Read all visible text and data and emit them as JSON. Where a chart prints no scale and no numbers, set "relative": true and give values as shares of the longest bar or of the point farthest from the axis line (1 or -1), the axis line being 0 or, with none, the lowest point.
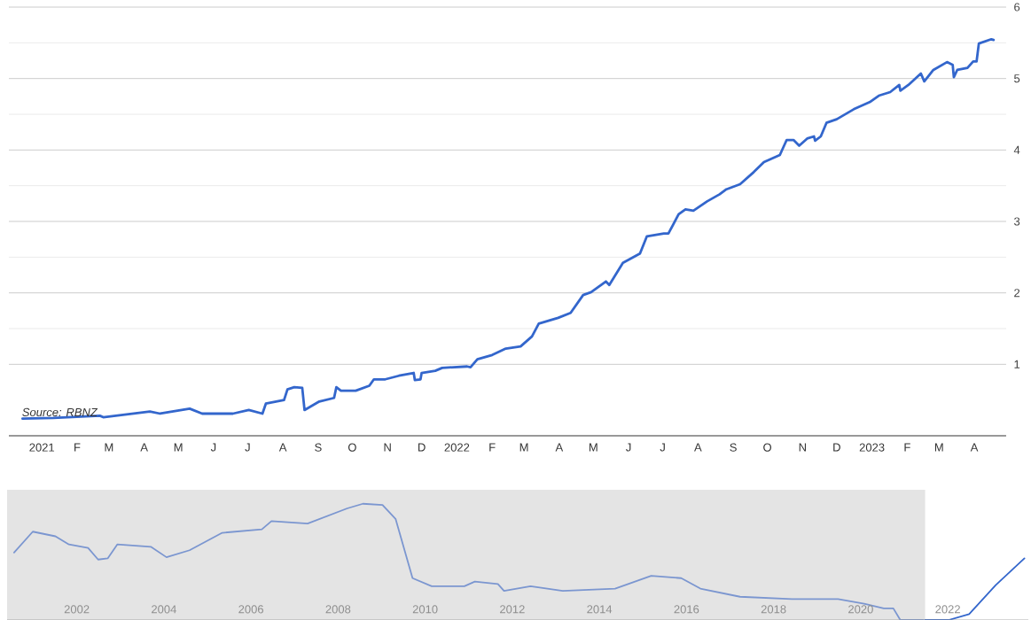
{
  "chart_data": [
    {
      "type": "line",
      "color": "#3366cc",
      "x": [
        "2020-12-15",
        "2021-01-11",
        "2021-02-21",
        "2021-02-24",
        "2021-04-06",
        "2021-04-15",
        "2021-05-11",
        "2021-05-22",
        "2021-06-18",
        "2021-07-02",
        "2021-07-14",
        "2021-07-17",
        "2021-08-02",
        "2021-08-05",
        "2021-08-11",
        "2021-08-18",
        "2021-08-20",
        "2021-09-02",
        "2021-09-15",
        "2021-09-17",
        "2021-09-21",
        "2021-10-04",
        "2021-10-16",
        "2021-10-20",
        "2021-10-30",
        "2021-11-11",
        "2021-11-24",
        "2021-11-25",
        "2021-11-30",
        "2021-12-01",
        "2021-12-13",
        "2021-12-19",
        "2022-01-10",
        "2022-01-13",
        "2022-01-19",
        "2022-02-01",
        "2022-02-13",
        "2022-02-26",
        "2022-03-08",
        "2022-03-14",
        "2022-03-31",
        "2022-04-11",
        "2022-04-22",
        "2022-04-29",
        "2022-05-12",
        "2022-05-15",
        "2022-05-27",
        "2022-06-11",
        "2022-06-17",
        "2022-07-02",
        "2022-07-06",
        "2022-07-15",
        "2022-07-21",
        "2022-07-28",
        "2022-08-09",
        "2022-08-20",
        "2022-08-26",
        "2022-09-07",
        "2022-09-19",
        "2022-09-28",
        "2022-10-05",
        "2022-10-12",
        "2022-10-18",
        "2022-10-24",
        "2022-10-29",
        "2022-11-05",
        "2022-11-11",
        "2022-11-12",
        "2022-11-17",
        "2022-11-22",
        "2022-12-01",
        "2022-12-16",
        "2022-12-30",
        "2023-01-07",
        "2023-01-17",
        "2023-01-25",
        "2023-01-26",
        "2023-02-02",
        "2023-02-13",
        "2023-02-16",
        "2023-02-24",
        "2023-03-08",
        "2023-03-13",
        "2023-03-14",
        "2023-03-17",
        "2023-03-26",
        "2023-03-31",
        "2023-04-03",
        "2023-04-05",
        "2023-04-16",
        "2023-04-18"
      ],
      "values": [
        0.24,
        0.25,
        0.28,
        0.26,
        0.34,
        0.31,
        0.38,
        0.31,
        0.31,
        0.36,
        0.31,
        0.45,
        0.5,
        0.65,
        0.68,
        0.67,
        0.36,
        0.48,
        0.53,
        0.68,
        0.63,
        0.63,
        0.7,
        0.79,
        0.79,
        0.84,
        0.88,
        0.78,
        0.79,
        0.88,
        0.91,
        0.95,
        0.97,
        0.96,
        1.07,
        1.13,
        1.22,
        1.25,
        1.39,
        1.57,
        1.65,
        1.72,
        1.97,
        2.01,
        2.16,
        2.11,
        2.42,
        2.55,
        2.79,
        2.83,
        2.83,
        3.1,
        3.17,
        3.15,
        3.28,
        3.38,
        3.45,
        3.52,
        3.69,
        3.83,
        3.88,
        3.93,
        4.14,
        4.14,
        4.06,
        4.16,
        4.19,
        4.13,
        4.19,
        4.38,
        4.43,
        4.57,
        4.67,
        4.76,
        4.81,
        4.91,
        4.83,
        4.91,
        5.07,
        4.96,
        5.12,
        5.23,
        5.19,
        5.02,
        5.12,
        5.15,
        5.24,
        5.24,
        5.49,
        5.55,
        5.54
      ],
      "xlim": [
        "2020-12-03",
        "2023-04-29"
      ],
      "xticks": [
        {
          "value": "2021-01-01",
          "label": "2021"
        },
        {
          "value": "2021-02-01",
          "label": "F"
        },
        {
          "value": "2021-03-01",
          "label": "M"
        },
        {
          "value": "2021-04-01",
          "label": "A"
        },
        {
          "value": "2021-05-01",
          "label": "M"
        },
        {
          "value": "2021-06-01",
          "label": "J"
        },
        {
          "value": "2021-07-01",
          "label": "J"
        },
        {
          "value": "2021-08-01",
          "label": "A"
        },
        {
          "value": "2021-09-01",
          "label": "S"
        },
        {
          "value": "2021-10-01",
          "label": "O"
        },
        {
          "value": "2021-11-01",
          "label": "N"
        },
        {
          "value": "2021-12-01",
          "label": "D"
        },
        {
          "value": "2022-01-01",
          "label": "2022"
        },
        {
          "value": "2022-02-01",
          "label": "F"
        },
        {
          "value": "2022-03-01",
          "label": "M"
        },
        {
          "value": "2022-04-01",
          "label": "A"
        },
        {
          "value": "2022-05-01",
          "label": "M"
        },
        {
          "value": "2022-06-01",
          "label": "J"
        },
        {
          "value": "2022-07-01",
          "label": "J"
        },
        {
          "value": "2022-08-01",
          "label": "A"
        },
        {
          "value": "2022-09-01",
          "label": "S"
        },
        {
          "value": "2022-10-01",
          "label": "O"
        },
        {
          "value": "2022-11-01",
          "label": "N"
        },
        {
          "value": "2022-12-01",
          "label": "D"
        },
        {
          "value": "2023-01-01",
          "label": "2023"
        },
        {
          "value": "2023-02-01",
          "label": "F"
        },
        {
          "value": "2023-03-01",
          "label": "M"
        },
        {
          "value": "2023-04-01",
          "label": "A"
        }
      ],
      "ylim": [
        0,
        6
      ],
      "yticks": [
        1,
        2,
        3,
        4,
        5,
        6
      ],
      "grid": "y",
      "annotations": [
        "Source: RBNZ"
      ]
    },
    {
      "type": "line",
      "relative": true,
      "series": [
        {
          "color": "#7b96d0",
          "x": [
            2000.56,
            2000.99,
            2001.51,
            2001.82,
            2002.26,
            2002.49,
            2002.71,
            2002.93,
            2003.7,
            2004.06,
            2004.59,
            2005.34,
            2006.25,
            2006.47,
            2007.3,
            2008.21,
            2008.57,
            2009.02,
            2009.32,
            2009.71,
            2010.15,
            2010.9,
            2011.14,
            2011.67,
            2011.81,
            2012.42,
            2013.16,
            2014.36,
            2015.19,
            2015.88,
            2016.32,
            2017.23,
            2018.42,
            2019.48,
            2020.08,
            2020.53,
            2020.75,
            2020.91,
            2021.44
          ],
          "values": [
            0.58,
            0.76,
            0.72,
            0.65,
            0.62,
            0.52,
            0.53,
            0.65,
            0.63,
            0.54,
            0.6,
            0.75,
            0.78,
            0.85,
            0.83,
            0.96,
            1.0,
            0.99,
            0.87,
            0.36,
            0.29,
            0.29,
            0.33,
            0.31,
            0.25,
            0.29,
            0.25,
            0.27,
            0.38,
            0.36,
            0.27,
            0.2,
            0.18,
            0.18,
            0.14,
            0.1,
            0.1,
            0.0,
            0.0
          ]
        },
        {
          "color": "#3366cc",
          "x": [
            2021.48,
            2022.02,
            2022.49,
            2023.1,
            2023.76
          ],
          "values": [
            0.0,
            0.0,
            0.05,
            0.3,
            0.53
          ]
        }
      ],
      "xlim": [
        2000.4,
        2023.85
      ],
      "xticks": [
        2002,
        2004,
        2006,
        2008,
        2010,
        2012,
        2014,
        2016,
        2018,
        2020,
        2022
      ],
      "bands": [
        {
          "axis": "x",
          "from": 2000.4,
          "to": 2021.48,
          "color": "#e4e4e4"
        }
      ]
    }
  ]
}
